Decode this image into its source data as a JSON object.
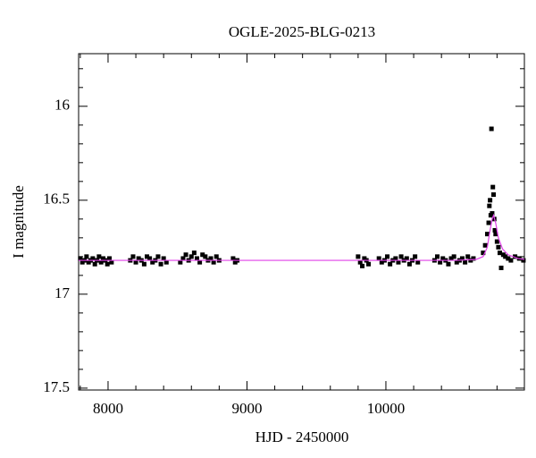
{
  "chart_data": {
    "type": "scatter",
    "title": "OGLE-2025-BLG-0213",
    "x_label": "HJD - 2450000",
    "y_label": "I magnitude",
    "xlim": [
      7788,
      10997
    ],
    "ylim": [
      17.51,
      15.72
    ],
    "y_inverted": true,
    "xticks": [
      8000,
      9000,
      10000
    ],
    "yticks": [
      16,
      16.5,
      17,
      17.5
    ],
    "xminorticks": [
      7800,
      8200,
      8400,
      8600,
      8800,
      9200,
      9400,
      9600,
      9800,
      10200,
      10400,
      10600,
      10800
    ],
    "yminorticks": [
      15.8,
      15.9,
      16.1,
      16.2,
      16.3,
      16.4,
      16.6,
      16.7,
      16.8,
      16.9,
      17.1,
      17.2,
      17.3,
      17.4
    ],
    "series": [
      {
        "mode": "markers",
        "color": "#000000",
        "x": [
          7800,
          7815,
          7830,
          7845,
          7860,
          7875,
          7890,
          7905,
          7920,
          7935,
          7950,
          7965,
          7980,
          7995,
          8010,
          8025,
          8160,
          8180,
          8200,
          8220,
          8240,
          8260,
          8280,
          8300,
          8320,
          8340,
          8360,
          8380,
          8400,
          8420,
          8520,
          8540,
          8560,
          8580,
          8600,
          8620,
          8640,
          8660,
          8680,
          8700,
          8720,
          8740,
          8760,
          8780,
          8800,
          8900,
          8915,
          8930,
          9800,
          9815,
          9830,
          9845,
          9860,
          9875,
          9950,
          9970,
          9990,
          10010,
          10030,
          10050,
          10070,
          10090,
          10110,
          10130,
          10150,
          10170,
          10190,
          10210,
          10230,
          10350,
          10370,
          10390,
          10410,
          10430,
          10450,
          10470,
          10490,
          10510,
          10530,
          10550,
          10570,
          10590,
          10610,
          10630,
          10700,
          10715,
          10730,
          10740,
          10745,
          10750,
          10755,
          10760,
          10765,
          10770,
          10775,
          10780,
          10785,
          10790,
          10800,
          10810,
          10820,
          10830,
          10845,
          10860,
          10880,
          10900,
          10930,
          10960,
          10990
        ],
        "values": [
          16.81,
          16.83,
          16.82,
          16.8,
          16.83,
          16.82,
          16.81,
          16.84,
          16.82,
          16.8,
          16.83,
          16.81,
          16.82,
          16.84,
          16.81,
          16.83,
          16.82,
          16.8,
          16.83,
          16.81,
          16.82,
          16.84,
          16.8,
          16.81,
          16.83,
          16.82,
          16.8,
          16.84,
          16.81,
          16.83,
          16.83,
          16.81,
          16.79,
          16.82,
          16.8,
          16.78,
          16.81,
          16.83,
          16.79,
          16.8,
          16.82,
          16.81,
          16.83,
          16.8,
          16.82,
          16.81,
          16.83,
          16.82,
          16.8,
          16.83,
          16.85,
          16.81,
          16.82,
          16.84,
          16.81,
          16.83,
          16.82,
          16.8,
          16.84,
          16.82,
          16.81,
          16.83,
          16.8,
          16.82,
          16.81,
          16.84,
          16.82,
          16.8,
          16.83,
          16.82,
          16.8,
          16.83,
          16.81,
          16.82,
          16.84,
          16.81,
          16.8,
          16.83,
          16.82,
          16.81,
          16.83,
          16.8,
          16.82,
          16.81,
          16.78,
          16.74,
          16.68,
          16.62,
          16.53,
          16.5,
          16.58,
          16.12,
          16.57,
          16.43,
          16.47,
          16.6,
          16.66,
          16.68,
          16.72,
          16.75,
          16.78,
          16.86,
          16.79,
          16.8,
          16.81,
          16.82,
          16.8,
          16.81,
          16.82
        ]
      },
      {
        "mode": "line",
        "color": "#e040e8",
        "x": [
          7788,
          10500,
          10650,
          10700,
          10730,
          10750,
          10765,
          10775,
          10790,
          10810,
          10840,
          10880,
          10950,
          10997
        ],
        "values": [
          16.82,
          16.82,
          16.815,
          16.8,
          16.75,
          16.66,
          16.6,
          16.58,
          16.62,
          16.7,
          16.76,
          16.79,
          16.81,
          16.815
        ]
      }
    ]
  }
}
